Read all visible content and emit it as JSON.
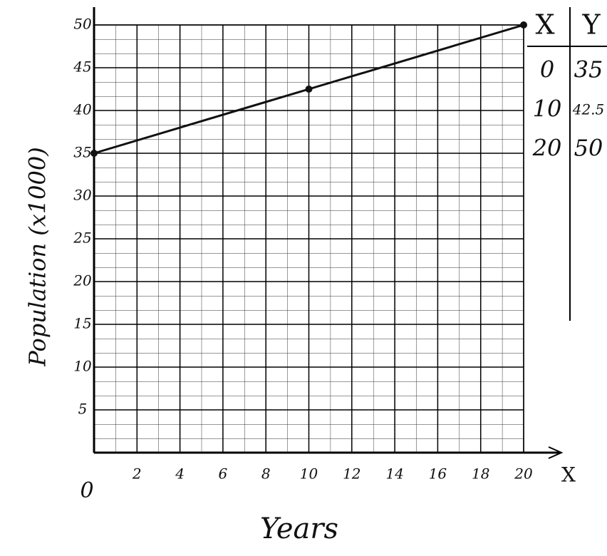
{
  "chart_data": {
    "type": "line",
    "x": [
      0,
      10,
      20
    ],
    "values": [
      35,
      42.5,
      50
    ],
    "color": "#111111",
    "xlim": [
      0,
      20
    ],
    "ylim": [
      0,
      50
    ],
    "xticks": [
      0,
      2,
      4,
      6,
      8,
      10,
      12,
      14,
      16,
      18,
      20
    ],
    "yticks": [
      5,
      10,
      15,
      20,
      25,
      30,
      35,
      40,
      45,
      50
    ],
    "x_label": "Years",
    "y_label": "Population (x1000)",
    "axis_end_label": "X",
    "grid": true
  },
  "table": {
    "headers": [
      "X",
      "Y"
    ],
    "rows": [
      [
        "0",
        "35"
      ],
      [
        "10",
        "42.5"
      ],
      [
        "20",
        "50"
      ]
    ]
  }
}
